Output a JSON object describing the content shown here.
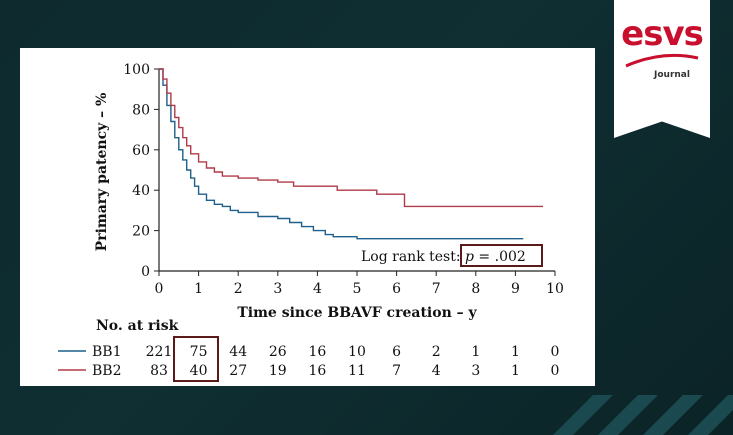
{
  "branding": {
    "logo_text": "esvs",
    "logo_sub": "Journal",
    "accent_color": "#c8102e"
  },
  "chart_data": {
    "type": "line",
    "ylabel": "Primary patency – %",
    "xlabel": "Time since BBAVF creation – y",
    "xlim": [
      0,
      10
    ],
    "ylim": [
      0,
      100
    ],
    "x_ticks": [
      0,
      1,
      2,
      3,
      4,
      5,
      6,
      7,
      8,
      9,
      10
    ],
    "y_ticks": [
      0,
      20,
      40,
      60,
      80,
      100
    ],
    "grid": false,
    "annotation": {
      "prefix": "Log rank test: ",
      "p_label": "p",
      "p_text": " = .002"
    },
    "series": [
      {
        "name": "BB1",
        "color": "#1f5f8b",
        "points": [
          [
            0,
            100
          ],
          [
            0.1,
            92
          ],
          [
            0.2,
            82
          ],
          [
            0.3,
            74
          ],
          [
            0.4,
            66
          ],
          [
            0.5,
            60
          ],
          [
            0.6,
            55
          ],
          [
            0.7,
            50
          ],
          [
            0.8,
            46
          ],
          [
            0.9,
            42
          ],
          [
            1.0,
            38
          ],
          [
            1.2,
            35
          ],
          [
            1.4,
            33
          ],
          [
            1.6,
            32
          ],
          [
            1.8,
            30
          ],
          [
            2.0,
            29
          ],
          [
            2.5,
            27
          ],
          [
            3.0,
            26
          ],
          [
            3.3,
            24
          ],
          [
            3.6,
            22
          ],
          [
            3.9,
            20
          ],
          [
            4.2,
            18
          ],
          [
            4.4,
            17
          ],
          [
            4.6,
            17
          ],
          [
            5.0,
            16
          ],
          [
            6.0,
            16
          ],
          [
            7.0,
            16
          ],
          [
            8.0,
            16
          ],
          [
            9.0,
            16
          ],
          [
            9.2,
            16
          ]
        ]
      },
      {
        "name": "BB2",
        "color": "#b03a48",
        "points": [
          [
            0,
            100
          ],
          [
            0.1,
            95
          ],
          [
            0.2,
            88
          ],
          [
            0.3,
            82
          ],
          [
            0.4,
            76
          ],
          [
            0.5,
            71
          ],
          [
            0.6,
            66
          ],
          [
            0.7,
            62
          ],
          [
            0.8,
            58
          ],
          [
            1.0,
            54
          ],
          [
            1.2,
            51
          ],
          [
            1.4,
            49
          ],
          [
            1.6,
            47
          ],
          [
            2.0,
            46
          ],
          [
            2.5,
            45
          ],
          [
            3.0,
            44
          ],
          [
            3.3,
            44
          ],
          [
            3.4,
            42
          ],
          [
            4.0,
            42
          ],
          [
            4.5,
            40
          ],
          [
            5.0,
            40
          ],
          [
            5.5,
            38
          ],
          [
            6.0,
            38
          ],
          [
            6.2,
            32
          ],
          [
            7.0,
            32
          ],
          [
            8.0,
            32
          ],
          [
            9.0,
            32
          ],
          [
            9.7,
            32
          ]
        ]
      }
    ],
    "risk_table": {
      "title": "No. at risk",
      "rows": [
        {
          "label": "BB1",
          "values": [
            "221",
            "75",
            "44",
            "26",
            "16",
            "10",
            "6",
            "2",
            "1",
            "1",
            "0"
          ]
        },
        {
          "label": "BB2",
          "values": [
            "83",
            "40",
            "27",
            "19",
            "16",
            "11",
            "7",
            "4",
            "3",
            "1",
            "0"
          ]
        }
      ]
    },
    "highlight_color": "#5a1a1a"
  }
}
